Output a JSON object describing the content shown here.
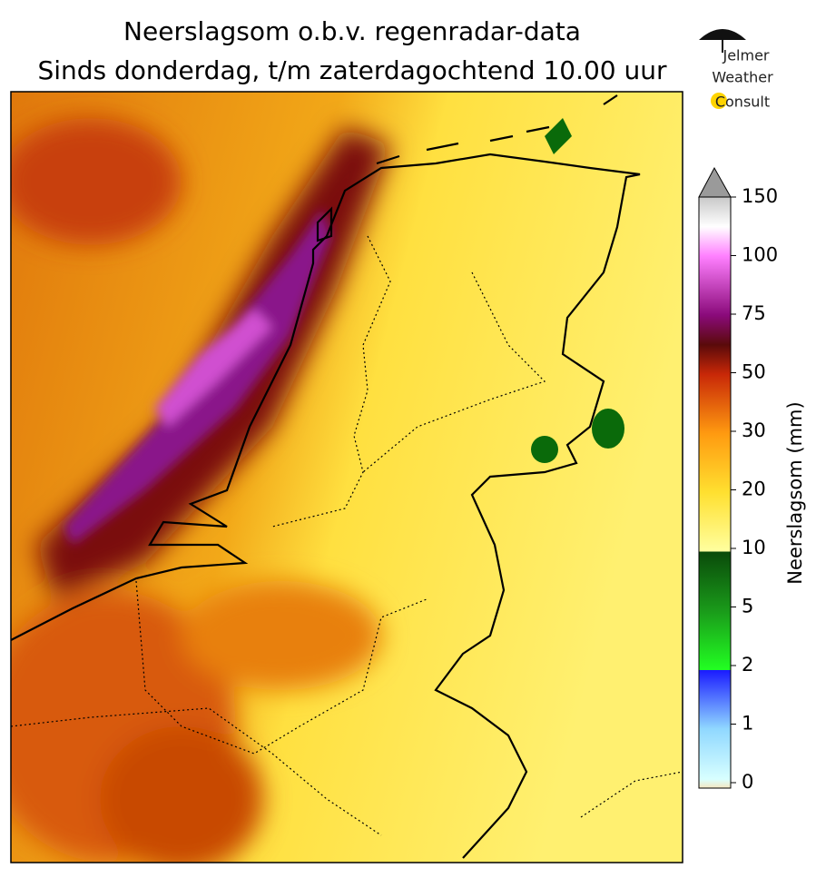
{
  "header": {
    "title": "Neerslagsom o.b.v. regenradar-data",
    "subtitle": "Sinds donderdag, t/m zaterdagochtend 10.00 uur"
  },
  "logo": {
    "lines": [
      "Jelmer",
      "Weather",
      "Consult"
    ]
  },
  "colorbar": {
    "label": "Neerslagsom (mm)",
    "ticks": [
      0,
      1,
      2,
      5,
      10,
      20,
      30,
      50,
      75,
      100,
      150
    ]
  }
}
